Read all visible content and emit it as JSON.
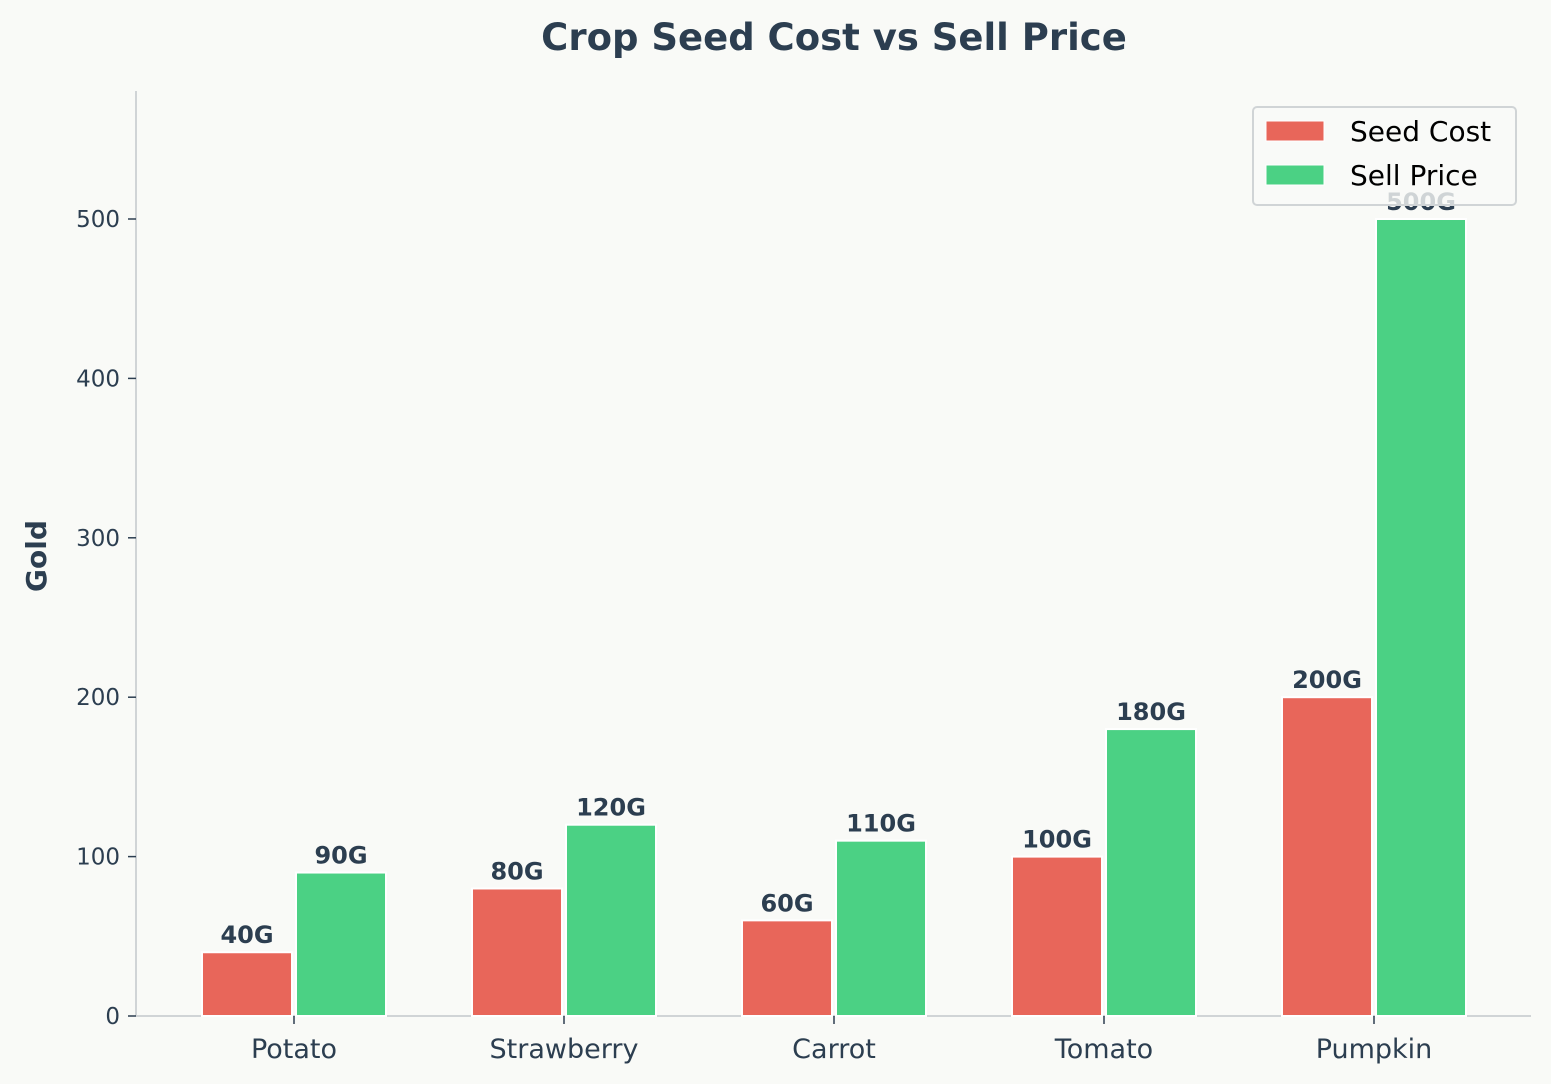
{
  "chart_data": {
    "type": "bar",
    "title": "Crop Seed Cost vs Sell Price",
    "xlabel": "",
    "ylabel": "Gold",
    "ylim": [
      0,
      580
    ],
    "yticks": [
      0,
      100,
      200,
      300,
      400,
      500
    ],
    "categories": [
      "Potato",
      "Strawberry",
      "Carrot",
      "Tomato",
      "Pumpkin"
    ],
    "value_suffix": "G",
    "series": [
      {
        "name": "Seed Cost",
        "color": "#e8665a",
        "values": [
          40,
          80,
          60,
          100,
          200
        ]
      },
      {
        "name": "Sell Price",
        "color": "#4bd184",
        "values": [
          90,
          120,
          110,
          180,
          500
        ]
      }
    ],
    "legend": "top-right",
    "grid": false
  }
}
